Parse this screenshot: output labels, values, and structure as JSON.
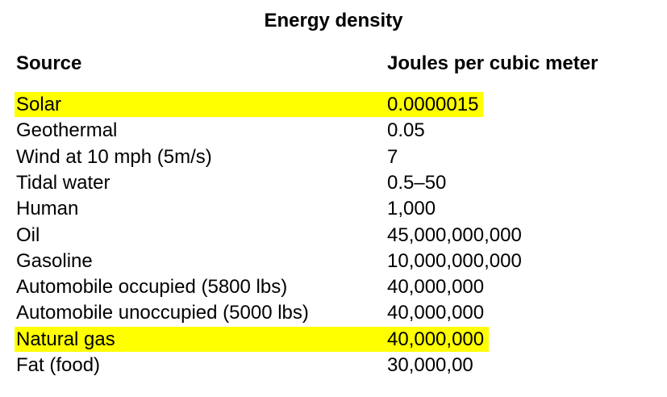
{
  "title": "Energy density",
  "table": {
    "header": [
      "Source",
      "Joules per cubic meter"
    ],
    "rows": [
      [
        "Solar",
        "0.0000015"
      ],
      [
        "Geothermal",
        "0.05"
      ],
      [
        "Wind at 10 mph (5m/s)",
        "7"
      ],
      [
        "Tidal water",
        "0.5–50"
      ],
      [
        "Human",
        "1,000"
      ],
      [
        "Oil",
        "45,000,000,000"
      ],
      [
        "Gasoline",
        "10,000,000,000"
      ],
      [
        "Automobile occupied (5800 lbs)",
        "40,000,000"
      ],
      [
        "Automobile unoccupied (5000 lbs)",
        "40,000,000"
      ],
      [
        "Natural gas",
        "40,000,000"
      ],
      [
        "Fat (food)",
        "30,000,00"
      ]
    ]
  }
}
